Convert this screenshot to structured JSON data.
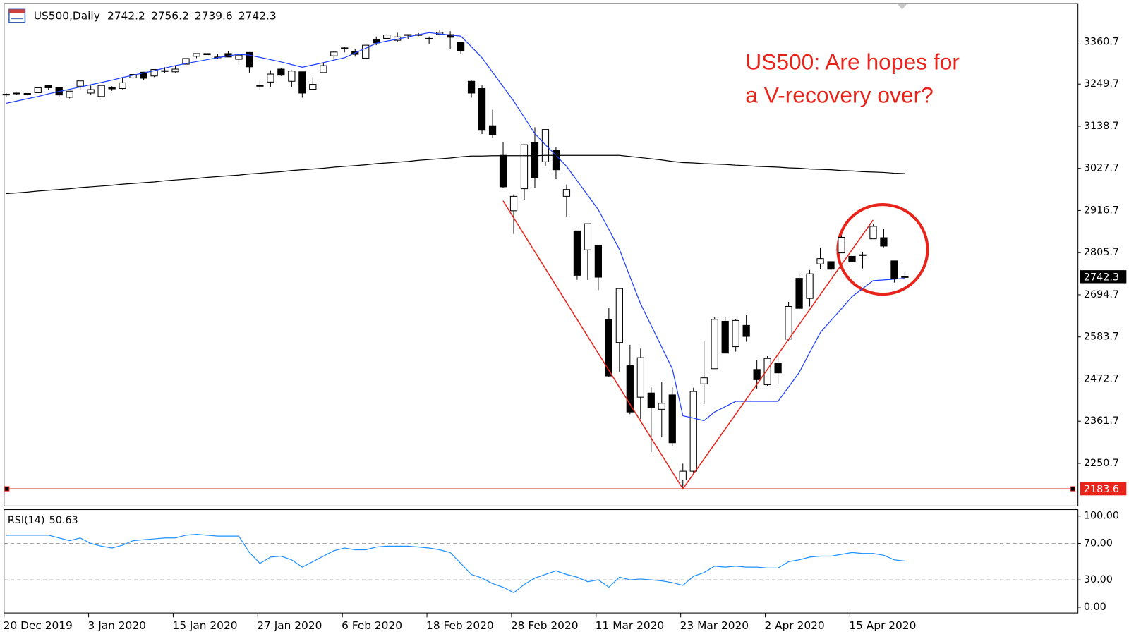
{
  "chart_data": [
    {
      "type": "candlestick",
      "symbol": "US500,Daily",
      "categories": [
        "20 Dec 2019",
        null,
        null,
        null,
        null,
        null,
        null,
        null,
        "3 Jan 2020",
        null,
        null,
        null,
        null,
        null,
        null,
        null,
        "15 Jan 2020",
        null,
        null,
        null,
        null,
        null,
        null,
        null,
        "27 Jan 2020",
        null,
        null,
        null,
        null,
        null,
        null,
        null,
        "6 Feb 2020",
        null,
        null,
        null,
        null,
        null,
        null,
        null,
        "18 Feb 2020",
        null,
        null,
        null,
        null,
        null,
        null,
        null,
        "28 Feb 2020",
        null,
        null,
        null,
        null,
        null,
        null,
        null,
        "11 Mar 2020",
        null,
        null,
        null,
        null,
        null,
        null,
        null,
        "23 Mar 2020",
        null,
        null,
        null,
        null,
        null,
        null,
        null,
        "2 Apr 2020",
        null,
        null,
        null,
        null,
        null,
        null,
        null,
        "15 Apr 2020",
        null,
        null,
        null,
        null,
        null
      ],
      "open": [
        3223,
        3226,
        3225,
        3227,
        3247,
        3240,
        3215,
        3244,
        3226,
        3217,
        3241,
        3238,
        3266,
        3281,
        3271,
        3285,
        3282,
        3302,
        3323,
        3330,
        3321,
        3330,
        3315,
        3333,
        3247,
        3255,
        3289,
        3257,
        3282,
        3236,
        3280,
        3324,
        3344,
        3335,
        3318,
        3366,
        3370,
        3365,
        3378,
        3380,
        3370,
        3380,
        3380,
        3360,
        3257,
        3238,
        3140,
        3062,
        2916,
        2974,
        3096,
        3045,
        3075,
        2954,
        2863,
        2813,
        2825,
        2630,
        2569,
        2508,
        2425,
        2436,
        2393,
        2431,
        2207,
        2230,
        2460,
        2500,
        2625,
        2558,
        2614,
        2498,
        2458,
        2514,
        2578,
        2738,
        2685,
        2776,
        2782,
        2805,
        2796,
        2799,
        2842,
        2845,
        2784,
        2742.2
      ],
      "high": [
        3226,
        3227,
        3226,
        3240,
        3247,
        3240,
        3231,
        3258,
        3246,
        3247,
        3244,
        3267,
        3275,
        3282,
        3288,
        3294,
        3298,
        3317,
        3330,
        3331,
        3329,
        3337,
        3326,
        3334,
        3258,
        3286,
        3293,
        3286,
        3282,
        3268,
        3306,
        3337,
        3348,
        3341,
        3352,
        3375,
        3381,
        3385,
        3380,
        3384,
        3375,
        3393,
        3389,
        3360,
        3259,
        3246,
        3182,
        3097,
        2959,
        3090,
        3136,
        3130,
        3083,
        2985,
        2863,
        2882,
        2825,
        2660,
        2711,
        2563,
        2553,
        2453,
        2466,
        2453,
        2250,
        2450,
        2572,
        2637,
        2637,
        2631,
        2641,
        2522,
        2533,
        2538,
        2676,
        2756,
        2760,
        2818,
        2782,
        2851,
        2801,
        2806,
        2880,
        2868,
        2785,
        2756.2
      ],
      "low": [
        3216,
        3222,
        3220,
        3227,
        3234,
        3216,
        3212,
        3235,
        3222,
        3215,
        3232,
        3236,
        3263,
        3260,
        3268,
        3278,
        3280,
        3302,
        3318,
        3325,
        3316,
        3321,
        3301,
        3280,
        3234,
        3242,
        3271,
        3242,
        3214,
        3236,
        3280,
        3313,
        3333,
        3322,
        3317,
        3352,
        3369,
        3360,
        3367,
        3376,
        3355,
        3378,
        3341,
        3328,
        3214,
        3118,
        3108,
        2977,
        2855,
        2945,
        2976,
        3034,
        2999,
        2901,
        2734,
        2734,
        2707,
        2478,
        2492,
        2380,
        2367,
        2280,
        2319,
        2295,
        2183.6,
        2220,
        2407,
        2500,
        2545,
        2545,
        2571,
        2447,
        2455,
        2459,
        2574,
        2657,
        2664,
        2762,
        2721,
        2805,
        2762,
        2764,
        2842,
        2820,
        2727,
        2739.6
      ],
      "close": [
        3221,
        3224,
        3223,
        3240,
        3240,
        3221,
        3231,
        3258,
        3235,
        3246,
        3237,
        3253,
        3275,
        3265,
        3288,
        3283,
        3289,
        3317,
        3330,
        3327,
        3321,
        3321,
        3326,
        3295,
        3244,
        3276,
        3273,
        3284,
        3226,
        3249,
        3298,
        3334,
        3345,
        3328,
        3352,
        3358,
        3379,
        3374,
        3380,
        3378,
        3370,
        3386,
        3373,
        3338,
        3226,
        3128,
        3116,
        2979,
        2954,
        3090,
        3003,
        3130,
        3024,
        2972,
        2746,
        2882,
        2741,
        2481,
        2711,
        2386,
        2529,
        2398,
        2409,
        2305,
        2230,
        2440,
        2476,
        2630,
        2541,
        2627,
        2585,
        2471,
        2527,
        2489,
        2664,
        2659,
        2750,
        2790,
        2762,
        2846,
        2783,
        2800,
        2875,
        2823,
        2737,
        2742.3
      ],
      "up_color": "#ffffff",
      "down_color": "#000000",
      "series": [
        {
          "color": "#1f3fff",
          "values": [
            3199,
            3205,
            3211,
            3217,
            3224,
            3230,
            3236,
            3242,
            3248,
            3254,
            3260,
            3267,
            3273,
            3279,
            3285,
            3292,
            3298,
            3304,
            3309,
            3314,
            3319,
            3324,
            3328,
            3326,
            3320,
            3314,
            3308,
            3301,
            3294,
            3300,
            3306,
            3313,
            3319,
            3332,
            3344,
            3357,
            3363,
            3368,
            3374,
            3380,
            3385,
            3382,
            3379,
            3376,
            3348,
            3319,
            3281,
            3243,
            3205,
            3162,
            3119,
            3090,
            3062,
            3033,
            2995,
            2957,
            2919,
            2867,
            2814,
            2742,
            2671,
            2614,
            2557,
            2500,
            2376,
            2370,
            2363,
            2386,
            2400,
            2414,
            2414,
            2414,
            2414,
            2414,
            2452,
            2490,
            2543,
            2595,
            2627,
            2658,
            2690,
            2711,
            2732,
            2734,
            2736,
            2738
          ]
        },
        {
          "color": "#000000",
          "values": [
            2961,
            2963,
            2965,
            2968,
            2970,
            2972,
            2974,
            2977,
            2979,
            2981,
            2983,
            2986,
            2988,
            2990,
            2992,
            2995,
            2997,
            2999,
            3001,
            3004,
            3006,
            3008,
            3010,
            3013,
            3015,
            3017,
            3019,
            3022,
            3024,
            3026,
            3028,
            3031,
            3033,
            3035,
            3037,
            3040,
            3042,
            3044,
            3046,
            3049,
            3051,
            3053,
            3055,
            3058,
            3060,
            3060,
            3061,
            3061,
            3061,
            3061,
            3061,
            3062,
            3062,
            3062,
            3062,
            3062,
            3062,
            3062,
            3062,
            3059,
            3056,
            3053,
            3050,
            3046,
            3043,
            3042,
            3040,
            3039,
            3038,
            3036,
            3035,
            3033,
            3032,
            3031,
            3029,
            3028,
            3026,
            3025,
            3024,
            3022,
            3021,
            3019,
            3018,
            3017,
            3015,
            3014
          ]
        }
      ],
      "ylim": [
        2138.4,
        3461.6
      ],
      "yticks": [
        3360.7,
        3249.7,
        3138.7,
        3027.7,
        2916.7,
        2805.7,
        2694.7,
        2583.7,
        2472.7,
        2361.7,
        2250.7
      ],
      "annotation": [
        "US500: Are hopes for",
        "a V-recovery over?"
      ],
      "annotation_color": "#e8231a",
      "support": {
        "value": 2183.6,
        "color": "#e8231a"
      },
      "trendline": {
        "at": [
          47,
          64,
          82
        ],
        "values": [
          2942,
          2183.6,
          2892
        ],
        "color": "#e8231a"
      }
    },
    {
      "type": "line",
      "name": "RSI(14)",
      "series": [
        {
          "color": "#1e90ff",
          "values": [
            79,
            79,
            79,
            79,
            79,
            76,
            73,
            76,
            70,
            67,
            65,
            68,
            73,
            74,
            75,
            76,
            76,
            79,
            80,
            79,
            78,
            78,
            78,
            60,
            48,
            55,
            56,
            52,
            44,
            50,
            56,
            62,
            65,
            63,
            63,
            66,
            67,
            67,
            67,
            66,
            65,
            63,
            60,
            48,
            36,
            32,
            26,
            22,
            16,
            25,
            32,
            36,
            40,
            36,
            33,
            28,
            30,
            22,
            33,
            30,
            31,
            30,
            29,
            27,
            24,
            34,
            38,
            45,
            44,
            45,
            44,
            44,
            43,
            43,
            50,
            52,
            55,
            56,
            56,
            58,
            60,
            59,
            59,
            57,
            52,
            50.63
          ]
        }
      ],
      "ylim": [
        -6.3,
        107.1
      ],
      "yticks": [
        {
          "value": 100,
          "label": "100.00"
        },
        {
          "value": 70,
          "label": "70.00"
        },
        {
          "value": 30,
          "label": "30.00"
        },
        {
          "value": 0,
          "label": "0.00"
        }
      ],
      "levels": [
        70,
        30
      ],
      "level_color": "#a0a0a0"
    }
  ]
}
